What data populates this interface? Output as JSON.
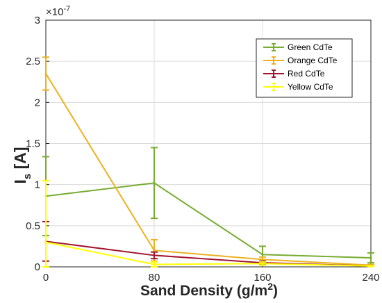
{
  "chart_data": {
    "type": "line",
    "x": [
      0,
      80,
      160,
      240
    ],
    "xticks": [
      "0",
      "80",
      "160",
      "240"
    ],
    "xlim": [
      0,
      240
    ],
    "xlabel": "Sand Density (g/m",
    "xlabel_sup": "2",
    "xlabel_tail": ")",
    "ylabel_main": "I",
    "ylabel_sub": "s",
    "ylabel_tail": " [A]",
    "ylim": [
      0,
      3
    ],
    "yticks": [
      "0",
      "0.5",
      "1",
      "1.5",
      "2",
      "2.5",
      "3"
    ],
    "y_multiplier_base": "×10",
    "y_multiplier_exp": "-7",
    "grid": true,
    "legend_position": "top-right",
    "series": [
      {
        "name": "Green CdTe",
        "color": "#77ac30",
        "values": [
          0.86,
          1.02,
          0.15,
          0.11
        ],
        "errors": [
          0.48,
          0.43,
          0.1,
          0.06
        ]
      },
      {
        "name": "Orange CdTe",
        "color": "#edb120",
        "values": [
          2.35,
          0.2,
          0.09,
          0.02
        ],
        "errors": [
          0.2,
          0.13,
          0.03,
          0.01
        ]
      },
      {
        "name": "Red CdTe",
        "color": "#a2142f",
        "values": [
          0.31,
          0.14,
          0.05,
          0.01
        ],
        "errors": [
          0.24,
          0.04,
          0.02,
          0.005
        ]
      },
      {
        "name": "Yellow CdTe",
        "color": "#ffff00",
        "values": [
          0.3,
          0.03,
          0.04,
          0.01
        ],
        "errors": [
          0.75,
          0.03,
          0.02,
          0.005
        ]
      }
    ]
  }
}
